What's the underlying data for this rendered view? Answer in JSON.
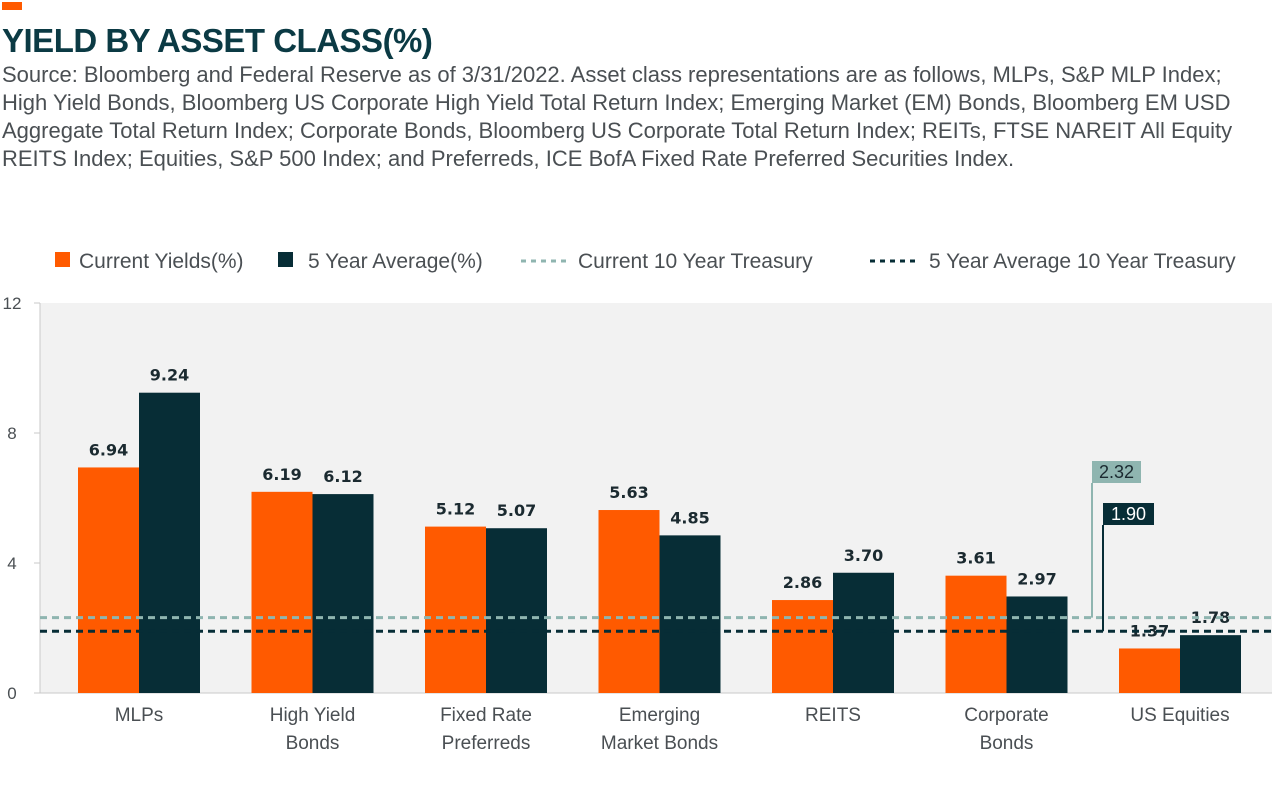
{
  "header": {
    "title": "YIELD BY ASSET CLASS(%)",
    "subtitle": "Source: Bloomberg and Federal Reserve as of 3/31/2022. Asset class representations are as follows, MLPs, S&P MLP Index; High Yield Bonds, Bloomberg US Corporate High Yield Total Return Index; Emerging Market (EM) Bonds, Bloomberg EM USD Aggregate Total Return Index; Corporate Bonds, Bloomberg US Corporate Total Return Index; REITs, FTSE NAREIT All Equity REITS Index; Equities, S&P 500 Index; and Preferreds, ICE BofA Fixed Rate Preferred Securities Index."
  },
  "colors": {
    "current": "#ff5a00",
    "average": "#072d36",
    "current_treasury": "#8fb5b0",
    "average_treasury": "#072d36",
    "accent": "#ff5a00",
    "grid": "#c9c9c9"
  },
  "chart_data": {
    "type": "bar",
    "title": "YIELD BY ASSET CLASS(%)",
    "ylim": [
      0,
      12
    ],
    "yticks": [
      "0",
      "4",
      "8",
      "12"
    ],
    "ytick_values": [
      0,
      4,
      8,
      12
    ],
    "grid": false,
    "legend_position": "top",
    "categories": [
      [
        "MLPs"
      ],
      [
        "High Yield",
        "Bonds"
      ],
      [
        "Fixed Rate",
        "Preferreds"
      ],
      [
        "Emerging",
        "Market Bonds"
      ],
      [
        "REITS"
      ],
      [
        "Corporate",
        "Bonds"
      ],
      [
        "US Equities"
      ]
    ],
    "series": [
      {
        "name": "Current Yields(%)",
        "values": [
          6.94,
          6.19,
          5.12,
          5.63,
          2.86,
          3.61,
          1.37
        ],
        "labels": [
          "6.94",
          "6.19",
          "5.12",
          "5.63",
          "2.86",
          "3.61",
          "1.37"
        ]
      },
      {
        "name": "5 Year Average(%)",
        "values": [
          9.24,
          6.12,
          5.07,
          4.85,
          3.7,
          2.97,
          1.78
        ],
        "labels": [
          "9.24",
          "6.12",
          "5.07",
          "4.85",
          "3.70",
          "2.97",
          "1.78"
        ]
      }
    ],
    "reference_lines": [
      {
        "name": "Current 10 Year Treasury",
        "value": 2.32,
        "label": "2.32",
        "style": "dashed"
      },
      {
        "name": "5 Year Average 10 Year Treasury",
        "value": 1.9,
        "label": "1.90",
        "style": "dashed"
      }
    ]
  }
}
